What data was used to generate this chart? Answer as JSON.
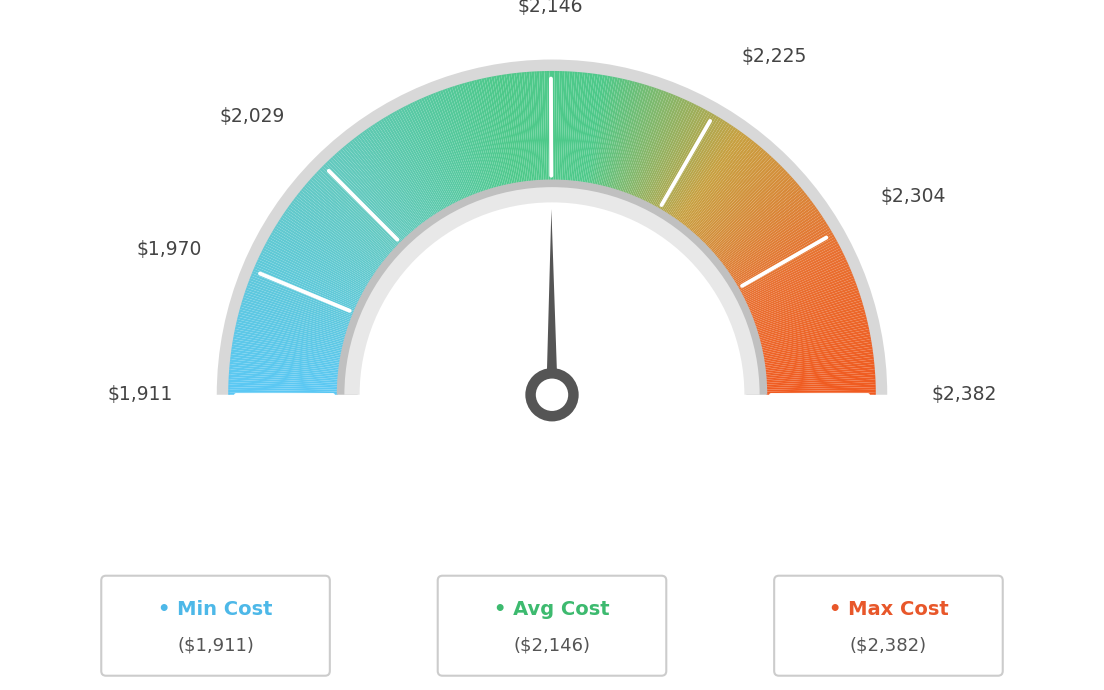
{
  "min_val": 1911,
  "max_val": 2382,
  "avg_val": 2146,
  "tick_labels": [
    "$1,911",
    "$1,970",
    "$2,029",
    "$2,146",
    "$2,225",
    "$2,304",
    "$2,382"
  ],
  "tick_values": [
    1911,
    1970,
    2029,
    2146,
    2225,
    2304,
    2382
  ],
  "legend_labels": [
    "Min Cost",
    "Avg Cost",
    "Max Cost"
  ],
  "legend_values": [
    "($1,911)",
    "($2,146)",
    "($2,382)"
  ],
  "legend_dot_colors": [
    "#4db8e8",
    "#3dba6f",
    "#e8572a"
  ],
  "legend_label_colors": [
    "#4db8e8",
    "#3dba6f",
    "#e8572a"
  ],
  "bg_color": "#ffffff",
  "color_stops": [
    [
      0.0,
      "#5bc8f5"
    ],
    [
      0.25,
      "#63c9c0"
    ],
    [
      0.45,
      "#4ec98a"
    ],
    [
      0.55,
      "#4ec98a"
    ],
    [
      0.7,
      "#c8a040"
    ],
    [
      0.85,
      "#e87030"
    ],
    [
      1.0,
      "#f05a20"
    ]
  ],
  "outer_ring_color": "#d0d0d0",
  "inner_ring_color_outer": "#c8c8c8",
  "inner_ring_color_inner": "#f0f0f0",
  "needle_color": "#555555",
  "needle_ring_color": "#555555"
}
